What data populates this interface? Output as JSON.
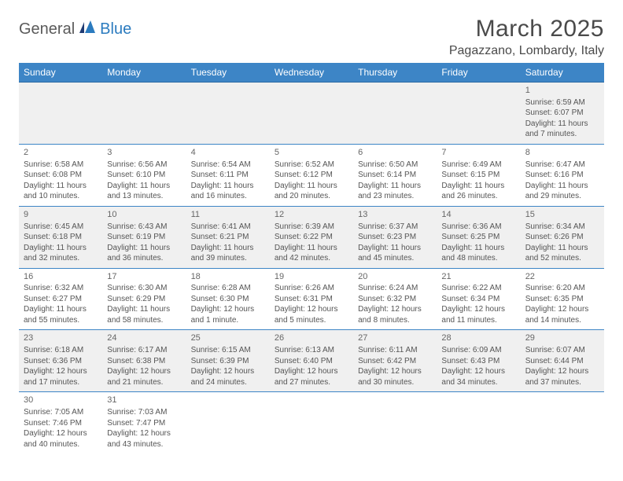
{
  "logo": {
    "general": "General",
    "blue": "Blue"
  },
  "title": "March 2025",
  "location": "Pagazzano, Lombardy, Italy",
  "colors": {
    "header_bg": "#3d85c6",
    "header_text": "#ffffff",
    "odd_row_bg": "#f0f0f0",
    "even_row_bg": "#ffffff",
    "cell_border": "#3d85c6",
    "text": "#555555",
    "title_text": "#4a4a4a",
    "logo_general": "#5a5a5a",
    "logo_blue": "#2b7bbf"
  },
  "weekdays": [
    "Sunday",
    "Monday",
    "Tuesday",
    "Wednesday",
    "Thursday",
    "Friday",
    "Saturday"
  ],
  "weeks": [
    [
      null,
      null,
      null,
      null,
      null,
      null,
      {
        "d": "1",
        "sr": "Sunrise: 6:59 AM",
        "ss": "Sunset: 6:07 PM",
        "dl1": "Daylight: 11 hours",
        "dl2": "and 7 minutes."
      }
    ],
    [
      {
        "d": "2",
        "sr": "Sunrise: 6:58 AM",
        "ss": "Sunset: 6:08 PM",
        "dl1": "Daylight: 11 hours",
        "dl2": "and 10 minutes."
      },
      {
        "d": "3",
        "sr": "Sunrise: 6:56 AM",
        "ss": "Sunset: 6:10 PM",
        "dl1": "Daylight: 11 hours",
        "dl2": "and 13 minutes."
      },
      {
        "d": "4",
        "sr": "Sunrise: 6:54 AM",
        "ss": "Sunset: 6:11 PM",
        "dl1": "Daylight: 11 hours",
        "dl2": "and 16 minutes."
      },
      {
        "d": "5",
        "sr": "Sunrise: 6:52 AM",
        "ss": "Sunset: 6:12 PM",
        "dl1": "Daylight: 11 hours",
        "dl2": "and 20 minutes."
      },
      {
        "d": "6",
        "sr": "Sunrise: 6:50 AM",
        "ss": "Sunset: 6:14 PM",
        "dl1": "Daylight: 11 hours",
        "dl2": "and 23 minutes."
      },
      {
        "d": "7",
        "sr": "Sunrise: 6:49 AM",
        "ss": "Sunset: 6:15 PM",
        "dl1": "Daylight: 11 hours",
        "dl2": "and 26 minutes."
      },
      {
        "d": "8",
        "sr": "Sunrise: 6:47 AM",
        "ss": "Sunset: 6:16 PM",
        "dl1": "Daylight: 11 hours",
        "dl2": "and 29 minutes."
      }
    ],
    [
      {
        "d": "9",
        "sr": "Sunrise: 6:45 AM",
        "ss": "Sunset: 6:18 PM",
        "dl1": "Daylight: 11 hours",
        "dl2": "and 32 minutes."
      },
      {
        "d": "10",
        "sr": "Sunrise: 6:43 AM",
        "ss": "Sunset: 6:19 PM",
        "dl1": "Daylight: 11 hours",
        "dl2": "and 36 minutes."
      },
      {
        "d": "11",
        "sr": "Sunrise: 6:41 AM",
        "ss": "Sunset: 6:21 PM",
        "dl1": "Daylight: 11 hours",
        "dl2": "and 39 minutes."
      },
      {
        "d": "12",
        "sr": "Sunrise: 6:39 AM",
        "ss": "Sunset: 6:22 PM",
        "dl1": "Daylight: 11 hours",
        "dl2": "and 42 minutes."
      },
      {
        "d": "13",
        "sr": "Sunrise: 6:37 AM",
        "ss": "Sunset: 6:23 PM",
        "dl1": "Daylight: 11 hours",
        "dl2": "and 45 minutes."
      },
      {
        "d": "14",
        "sr": "Sunrise: 6:36 AM",
        "ss": "Sunset: 6:25 PM",
        "dl1": "Daylight: 11 hours",
        "dl2": "and 48 minutes."
      },
      {
        "d": "15",
        "sr": "Sunrise: 6:34 AM",
        "ss": "Sunset: 6:26 PM",
        "dl1": "Daylight: 11 hours",
        "dl2": "and 52 minutes."
      }
    ],
    [
      {
        "d": "16",
        "sr": "Sunrise: 6:32 AM",
        "ss": "Sunset: 6:27 PM",
        "dl1": "Daylight: 11 hours",
        "dl2": "and 55 minutes."
      },
      {
        "d": "17",
        "sr": "Sunrise: 6:30 AM",
        "ss": "Sunset: 6:29 PM",
        "dl1": "Daylight: 11 hours",
        "dl2": "and 58 minutes."
      },
      {
        "d": "18",
        "sr": "Sunrise: 6:28 AM",
        "ss": "Sunset: 6:30 PM",
        "dl1": "Daylight: 12 hours",
        "dl2": "and 1 minute."
      },
      {
        "d": "19",
        "sr": "Sunrise: 6:26 AM",
        "ss": "Sunset: 6:31 PM",
        "dl1": "Daylight: 12 hours",
        "dl2": "and 5 minutes."
      },
      {
        "d": "20",
        "sr": "Sunrise: 6:24 AM",
        "ss": "Sunset: 6:32 PM",
        "dl1": "Daylight: 12 hours",
        "dl2": "and 8 minutes."
      },
      {
        "d": "21",
        "sr": "Sunrise: 6:22 AM",
        "ss": "Sunset: 6:34 PM",
        "dl1": "Daylight: 12 hours",
        "dl2": "and 11 minutes."
      },
      {
        "d": "22",
        "sr": "Sunrise: 6:20 AM",
        "ss": "Sunset: 6:35 PM",
        "dl1": "Daylight: 12 hours",
        "dl2": "and 14 minutes."
      }
    ],
    [
      {
        "d": "23",
        "sr": "Sunrise: 6:18 AM",
        "ss": "Sunset: 6:36 PM",
        "dl1": "Daylight: 12 hours",
        "dl2": "and 17 minutes."
      },
      {
        "d": "24",
        "sr": "Sunrise: 6:17 AM",
        "ss": "Sunset: 6:38 PM",
        "dl1": "Daylight: 12 hours",
        "dl2": "and 21 minutes."
      },
      {
        "d": "25",
        "sr": "Sunrise: 6:15 AM",
        "ss": "Sunset: 6:39 PM",
        "dl1": "Daylight: 12 hours",
        "dl2": "and 24 minutes."
      },
      {
        "d": "26",
        "sr": "Sunrise: 6:13 AM",
        "ss": "Sunset: 6:40 PM",
        "dl1": "Daylight: 12 hours",
        "dl2": "and 27 minutes."
      },
      {
        "d": "27",
        "sr": "Sunrise: 6:11 AM",
        "ss": "Sunset: 6:42 PM",
        "dl1": "Daylight: 12 hours",
        "dl2": "and 30 minutes."
      },
      {
        "d": "28",
        "sr": "Sunrise: 6:09 AM",
        "ss": "Sunset: 6:43 PM",
        "dl1": "Daylight: 12 hours",
        "dl2": "and 34 minutes."
      },
      {
        "d": "29",
        "sr": "Sunrise: 6:07 AM",
        "ss": "Sunset: 6:44 PM",
        "dl1": "Daylight: 12 hours",
        "dl2": "and 37 minutes."
      }
    ],
    [
      {
        "d": "30",
        "sr": "Sunrise: 7:05 AM",
        "ss": "Sunset: 7:46 PM",
        "dl1": "Daylight: 12 hours",
        "dl2": "and 40 minutes."
      },
      {
        "d": "31",
        "sr": "Sunrise: 7:03 AM",
        "ss": "Sunset: 7:47 PM",
        "dl1": "Daylight: 12 hours",
        "dl2": "and 43 minutes."
      },
      null,
      null,
      null,
      null,
      null
    ]
  ]
}
